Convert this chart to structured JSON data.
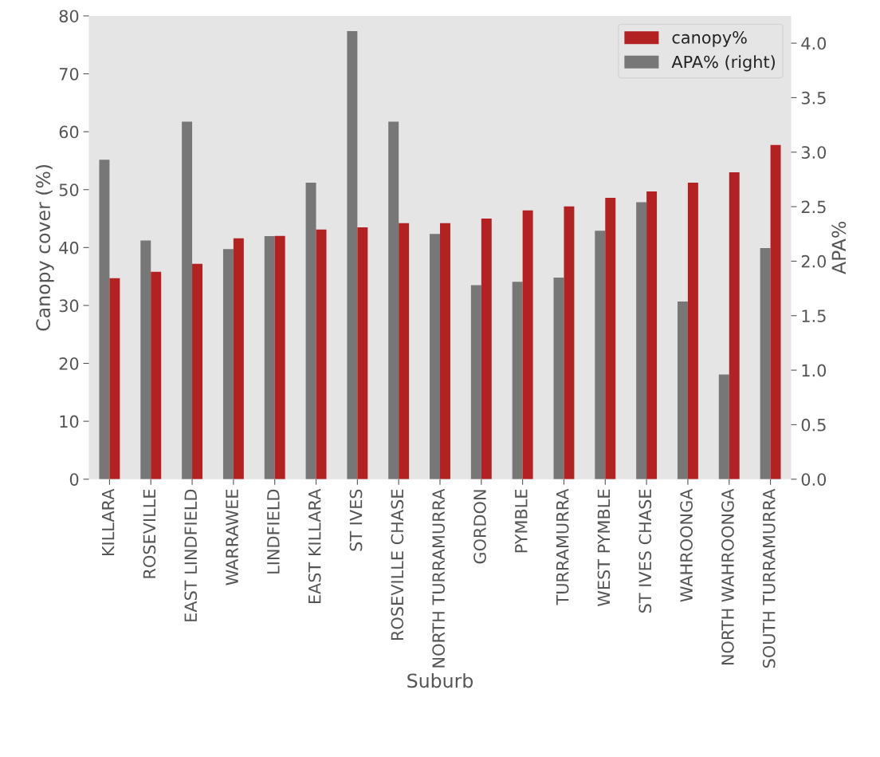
{
  "chart_data": {
    "type": "bar",
    "xlabel": "Suburb",
    "ylabel": "Canopy cover (%)",
    "y2label": "APA%",
    "categories": [
      "KILLARA",
      "ROSEVILLE",
      "EAST LINDFIELD",
      "WARRAWEE",
      "LINDFIELD",
      "EAST KILLARA",
      "ST IVES",
      "ROSEVILLE CHASE",
      "NORTH TURRAMURRA",
      "GORDON",
      "PYMBLE",
      "TURRAMURRA",
      "WEST PYMBLE",
      "ST IVES CHASE",
      "WAHROONGA",
      "NORTH WAHROONGA",
      "SOUTH TURRAMURRA"
    ],
    "series": [
      {
        "name": "canopy%",
        "color": "#b22222",
        "values": [
          34.7,
          35.8,
          37.2,
          41.6,
          42.0,
          43.1,
          43.5,
          44.2,
          44.2,
          45.0,
          46.4,
          47.1,
          48.6,
          49.7,
          51.2,
          53.0,
          57.7
        ]
      },
      {
        "name": "APA% (right)",
        "color": "#777777",
        "axis": "y2",
        "values": [
          2.93,
          2.19,
          3.28,
          2.11,
          2.23,
          2.72,
          4.11,
          3.28,
          2.25,
          1.78,
          1.81,
          1.85,
          2.28,
          2.54,
          1.63,
          0.96,
          2.12
        ]
      }
    ],
    "ylim": [
      0,
      80
    ],
    "yticks": [
      0,
      10,
      20,
      30,
      40,
      50,
      60,
      70,
      80
    ],
    "y2lim": [
      0,
      4.25
    ],
    "y2ticks": [
      {
        "value": 0,
        "label": "0.0"
      },
      {
        "value": 0.5,
        "label": "0.5"
      },
      {
        "value": 1,
        "label": "1.0"
      },
      {
        "value": 1.5,
        "label": "1.5"
      },
      {
        "value": 2,
        "label": "2.0"
      },
      {
        "value": 2.5,
        "label": "2.5"
      },
      {
        "value": 3,
        "label": "3.0"
      },
      {
        "value": 3.5,
        "label": "3.5"
      },
      {
        "value": 4,
        "label": "4.0"
      }
    ],
    "grid": false,
    "legend": "top right"
  }
}
